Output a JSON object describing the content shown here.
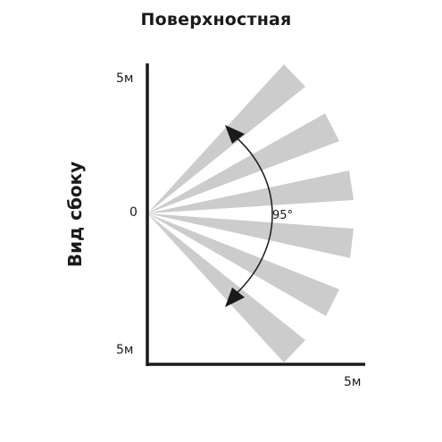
{
  "title": "Поверхностная",
  "side_label": "Вид сбоку",
  "axis": {
    "top_label": "5м",
    "zero_label": "0",
    "bottom_label": "5м",
    "x_label": "5м"
  },
  "angle": {
    "value": 95,
    "label": "95°"
  },
  "beams": {
    "count": 6,
    "color": "#cccccc"
  },
  "colors": {
    "axis": "#1a1a1a",
    "text": "#1a1a1a",
    "beam": "#cccccc"
  }
}
